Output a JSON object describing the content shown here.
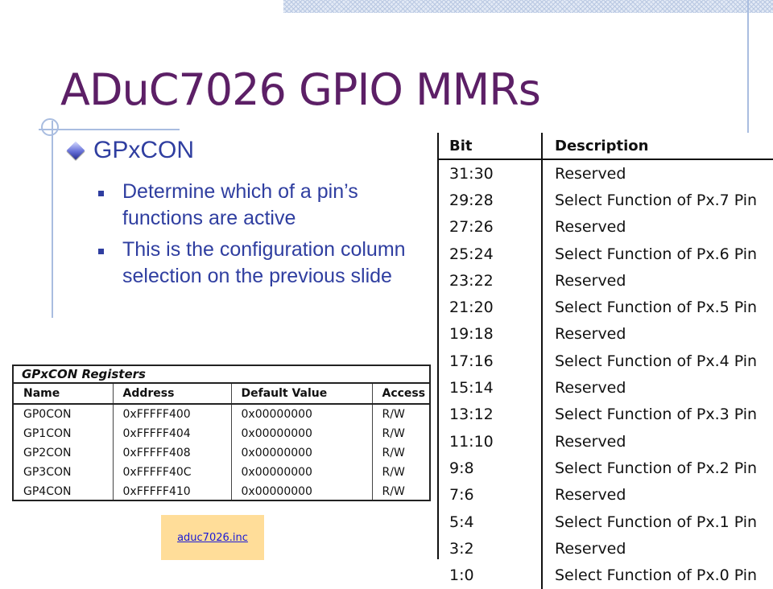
{
  "slide": {
    "title": "ADuC7026 GPIO MMRs",
    "level1": "GPxCON",
    "bullets": [
      "Determine which of a pin’s functions are active",
      "This is the configuration column selection on the previous slide"
    ],
    "link_text": "aduc7026.inc"
  },
  "register_table": {
    "title": "GPxCON Registers",
    "headers": [
      "Name",
      "Address",
      "Default Value",
      "Access"
    ],
    "rows": [
      [
        "GP0CON",
        "0xFFFFF400",
        "0x00000000",
        "R/W"
      ],
      [
        "GP1CON",
        "0xFFFFF404",
        "0x00000000",
        "R/W"
      ],
      [
        "GP2CON",
        "0xFFFFF408",
        "0x00000000",
        "R/W"
      ],
      [
        "GP3CON",
        "0xFFFFF40C",
        "0x00000000",
        "R/W"
      ],
      [
        "GP4CON",
        "0xFFFFF410",
        "0x00000000",
        "R/W"
      ]
    ]
  },
  "bit_table": {
    "headers": [
      "Bit",
      "Description"
    ],
    "rows": [
      [
        "31:30",
        "Reserved"
      ],
      [
        "29:28",
        "Select Function of Px.7 Pin"
      ],
      [
        "27:26",
        "Reserved"
      ],
      [
        "25:24",
        "Select Function of Px.6 Pin"
      ],
      [
        "23:22",
        "Reserved"
      ],
      [
        "21:20",
        "Select Function of Px.5 Pin"
      ],
      [
        "19:18",
        "Reserved"
      ],
      [
        "17:16",
        "Select Function of Px.4 Pin"
      ],
      [
        "15:14",
        "Reserved"
      ],
      [
        "13:12",
        "Select Function of Px.3 Pin"
      ],
      [
        "11:10",
        "Reserved"
      ],
      [
        "9:8",
        "Select Function of Px.2 Pin"
      ],
      [
        "7:6",
        "Reserved"
      ],
      [
        "5:4",
        "Select Function of Px.1 Pin"
      ],
      [
        "3:2",
        "Reserved"
      ],
      [
        "1:0",
        "Select Function of Px.0 Pin"
      ]
    ]
  },
  "colors": {
    "title": "#5c1f66",
    "body_text": "#2f3ea0",
    "accent_line": "#a9bde0",
    "link_box": "#ffdd99",
    "link_text": "#1a1ad6"
  }
}
